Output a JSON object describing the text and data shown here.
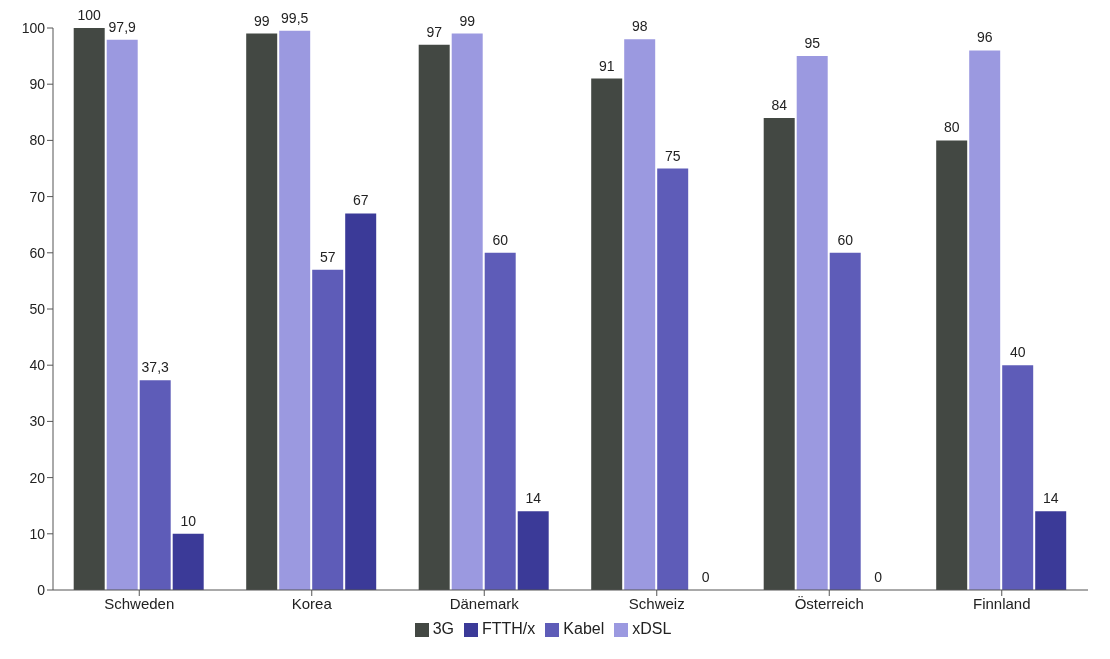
{
  "chart_data": {
    "type": "bar",
    "categories": [
      "Schweden",
      "Korea",
      "Dänemark",
      "Schweiz",
      "Österreich",
      "Finnland"
    ],
    "series": [
      {
        "name": "3G",
        "color": "#434843",
        "values": [
          100,
          99,
          97,
          91,
          84,
          80
        ],
        "value_labels": [
          "100",
          "99",
          "97",
          "91",
          "84",
          "80"
        ]
      },
      {
        "name": "xDSL",
        "color": "#9b99e0",
        "values": [
          97.9,
          99.5,
          99,
          98,
          95,
          96
        ],
        "value_labels": [
          "97,9",
          "99,5",
          "99",
          "98",
          "95",
          "96"
        ]
      },
      {
        "name": "Kabel",
        "color": "#5e5cb8",
        "values": [
          37.3,
          57,
          60,
          75,
          60,
          40
        ],
        "value_labels": [
          "37,3",
          "57",
          "60",
          "75",
          "60",
          "40"
        ]
      },
      {
        "name": "FTTH/x",
        "color": "#3b3a98",
        "values": [
          10,
          67,
          14,
          0,
          0,
          14
        ],
        "value_labels": [
          "10",
          "67",
          "14",
          "0",
          "0",
          "14"
        ]
      }
    ],
    "ylim": [
      0,
      100
    ],
    "yticks": [
      0,
      10,
      20,
      30,
      40,
      50,
      60,
      70,
      80,
      90,
      100
    ],
    "grid": false,
    "legend": "bottom"
  }
}
